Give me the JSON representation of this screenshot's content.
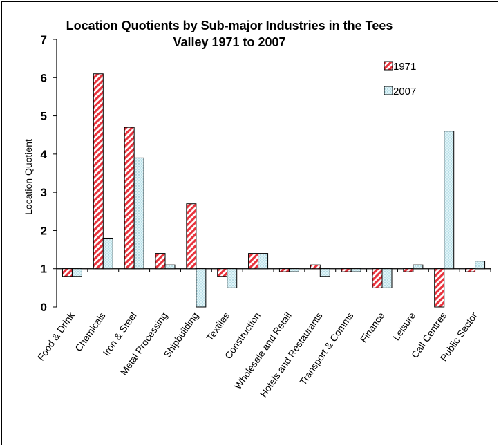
{
  "chart_data": {
    "type": "bar",
    "title_lines": [
      "Location Quotients by Sub-major Industries in the Tees",
      "Valley 1971 to 2007"
    ],
    "xlabel": "",
    "ylabel": "Location Quotient",
    "ylim": [
      0,
      7
    ],
    "yticks": [
      "0",
      "1",
      "2",
      "3",
      "4",
      "5",
      "6",
      "7"
    ],
    "baseline": 1,
    "categories": [
      "Food & Drink",
      "Chemicals",
      "Iron & Steel",
      "Metal Processing",
      "Shipbuilding",
      "Textiles",
      "Construction",
      "Wholesale and Retail",
      "Hotels and Restaurants",
      "Transport & Comms",
      "Finance",
      "Leisure",
      "Call Centres",
      "Public Sector"
    ],
    "series": [
      {
        "name": "1971",
        "color": "#e8323c",
        "pattern": "diagonal-red-white",
        "values": [
          0.8,
          6.1,
          4.7,
          1.4,
          2.7,
          0.8,
          1.4,
          0.92,
          1.1,
          0.92,
          0.5,
          0.92,
          0.0,
          0.92
        ]
      },
      {
        "name": "2007",
        "color": "#cdeef5",
        "pattern": "dotted-cyan",
        "values": [
          0.8,
          1.8,
          3.9,
          1.1,
          0.0,
          0.5,
          1.4,
          0.92,
          0.8,
          0.92,
          0.5,
          1.1,
          4.6,
          1.2
        ]
      }
    ],
    "legend_position": "top-right",
    "grid": false
  }
}
